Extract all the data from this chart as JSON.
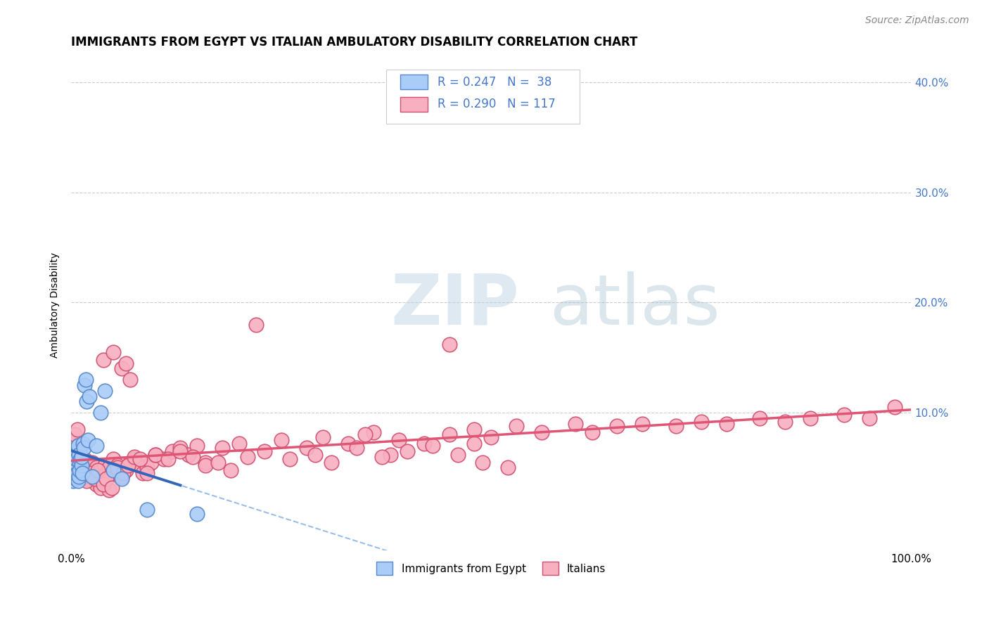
{
  "title": "IMMIGRANTS FROM EGYPT VS ITALIAN AMBULATORY DISABILITY CORRELATION CHART",
  "source": "Source: ZipAtlas.com",
  "ylabel": "Ambulatory Disability",
  "xlim": [
    0.0,
    1.0
  ],
  "ylim": [
    -0.025,
    0.42
  ],
  "blue_color": "#aaccf8",
  "blue_edge": "#5588cc",
  "pink_color": "#f8b0c0",
  "pink_edge": "#d05070",
  "trendline_blue_solid": "#3366bb",
  "trendline_blue_dash": "#99bfe8",
  "trendline_pink": "#e05575",
  "grid_color": "#cccccc",
  "background_color": "#ffffff",
  "tick_color_blue": "#4477cc",
  "watermark_zip": "ZIP",
  "watermark_atlas": "atlas",
  "blue_scatter_x": [
    0.001,
    0.002,
    0.002,
    0.003,
    0.003,
    0.004,
    0.004,
    0.005,
    0.005,
    0.006,
    0.006,
    0.007,
    0.007,
    0.008,
    0.008,
    0.009,
    0.009,
    0.01,
    0.01,
    0.011,
    0.012,
    0.012,
    0.013,
    0.014,
    0.015,
    0.016,
    0.017,
    0.018,
    0.02,
    0.022,
    0.025,
    0.03,
    0.035,
    0.04,
    0.05,
    0.06,
    0.09,
    0.15
  ],
  "blue_scatter_y": [
    0.042,
    0.045,
    0.038,
    0.05,
    0.055,
    0.048,
    0.06,
    0.052,
    0.044,
    0.058,
    0.04,
    0.065,
    0.045,
    0.07,
    0.038,
    0.062,
    0.042,
    0.055,
    0.048,
    0.058,
    0.052,
    0.06,
    0.045,
    0.072,
    0.068,
    0.125,
    0.13,
    0.11,
    0.075,
    0.115,
    0.042,
    0.07,
    0.1,
    0.12,
    0.048,
    0.04,
    0.012,
    0.008
  ],
  "pink_scatter_x": [
    0.001,
    0.002,
    0.003,
    0.004,
    0.005,
    0.006,
    0.007,
    0.008,
    0.009,
    0.01,
    0.011,
    0.012,
    0.013,
    0.014,
    0.015,
    0.016,
    0.018,
    0.02,
    0.022,
    0.025,
    0.028,
    0.03,
    0.032,
    0.035,
    0.038,
    0.04,
    0.042,
    0.045,
    0.048,
    0.05,
    0.055,
    0.06,
    0.065,
    0.07,
    0.075,
    0.08,
    0.085,
    0.09,
    0.095,
    0.1,
    0.11,
    0.12,
    0.13,
    0.14,
    0.15,
    0.16,
    0.18,
    0.2,
    0.22,
    0.25,
    0.28,
    0.3,
    0.33,
    0.36,
    0.39,
    0.42,
    0.45,
    0.48,
    0.5,
    0.53,
    0.56,
    0.6,
    0.62,
    0.65,
    0.68,
    0.72,
    0.75,
    0.78,
    0.82,
    0.85,
    0.88,
    0.92,
    0.95,
    0.98,
    0.45,
    0.48,
    0.35,
    0.38,
    0.05,
    0.055,
    0.06,
    0.065,
    0.07,
    0.02,
    0.025,
    0.03,
    0.035,
    0.04,
    0.045,
    0.012,
    0.015,
    0.018,
    0.022,
    0.028,
    0.032,
    0.038,
    0.042,
    0.048,
    0.055,
    0.062,
    0.068,
    0.075,
    0.082,
    0.09,
    0.1,
    0.115,
    0.13,
    0.145,
    0.16,
    0.175,
    0.19,
    0.21,
    0.23,
    0.26,
    0.29,
    0.31,
    0.34,
    0.37,
    0.4,
    0.43,
    0.46,
    0.49,
    0.52
  ],
  "pink_scatter_y": [
    0.075,
    0.068,
    0.062,
    0.08,
    0.058,
    0.055,
    0.085,
    0.07,
    0.048,
    0.065,
    0.06,
    0.055,
    0.048,
    0.055,
    0.052,
    0.058,
    0.045,
    0.055,
    0.042,
    0.055,
    0.048,
    0.05,
    0.045,
    0.042,
    0.148,
    0.052,
    0.045,
    0.05,
    0.045,
    0.058,
    0.052,
    0.042,
    0.048,
    0.055,
    0.058,
    0.052,
    0.045,
    0.05,
    0.055,
    0.062,
    0.058,
    0.065,
    0.068,
    0.062,
    0.07,
    0.055,
    0.068,
    0.072,
    0.18,
    0.075,
    0.068,
    0.078,
    0.072,
    0.082,
    0.075,
    0.072,
    0.08,
    0.085,
    0.078,
    0.088,
    0.082,
    0.09,
    0.082,
    0.088,
    0.09,
    0.088,
    0.092,
    0.09,
    0.095,
    0.092,
    0.095,
    0.098,
    0.095,
    0.105,
    0.162,
    0.072,
    0.08,
    0.062,
    0.155,
    0.048,
    0.14,
    0.145,
    0.13,
    0.04,
    0.038,
    0.035,
    0.032,
    0.038,
    0.03,
    0.05,
    0.042,
    0.038,
    0.045,
    0.04,
    0.048,
    0.035,
    0.04,
    0.032,
    0.05,
    0.045,
    0.052,
    0.06,
    0.058,
    0.045,
    0.062,
    0.058,
    0.065,
    0.06,
    0.052,
    0.055,
    0.048,
    0.06,
    0.065,
    0.058,
    0.062,
    0.055,
    0.068,
    0.06,
    0.065,
    0.07,
    0.062,
    0.055,
    0.05
  ],
  "title_fontsize": 12,
  "tick_fontsize": 11,
  "legend_fontsize": 12,
  "source_fontsize": 10
}
